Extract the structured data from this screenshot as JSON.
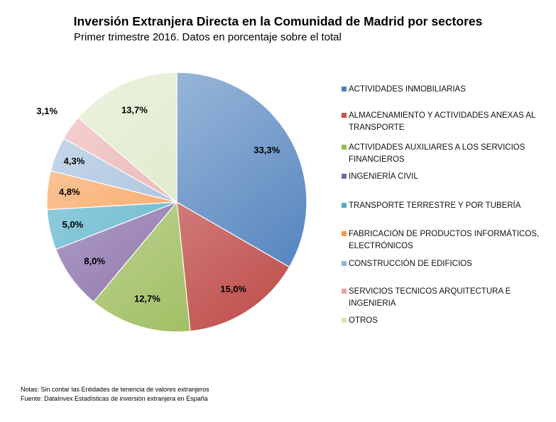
{
  "chart_data": {
    "type": "pie",
    "title": "Inversión Extranjera Directa en la Comunidad de Madrid por sectores",
    "subtitle": "Primer trimestre 2016. Datos en porcentaje sobre el total",
    "categories": [
      "ACTIVIDADES INMOBILIARIAS",
      "ALMACENAMIENTO Y ACTIVIDADES ANEXAS AL TRANSPORTE",
      "ACTIVIDADES AUXILIARES A LOS SERVICIOS FINANCIEROS",
      "INGENIERÍA CIVIL",
      "TRANSPORTE TERRESTRE Y POR TUBERÍA",
      "FABRICACIÓN DE PRODUCTOS INFORMÁTICOS, ELECTRÓNICOS",
      "CONSTRUCCIÓN DE EDIFICIOS",
      "SERVICIOS TECNICOS ARQUITECTURA E INGENIERIA",
      "OTROS"
    ],
    "values": [
      33.3,
      15.0,
      12.7,
      8.0,
      5.0,
      4.8,
      4.3,
      3.1,
      13.7
    ],
    "labels": [
      "33,3%",
      "15,0%",
      "12,7%",
      "8,0%",
      "5,0%",
      "4,8%",
      "4,3%",
      "3,1%",
      "13,7%"
    ],
    "colors": [
      "#4f81bd",
      "#c0504d",
      "#9bbb59",
      "#8064a2",
      "#4bacc6",
      "#f79646",
      "#95b3d7",
      "#e6a3a2",
      "#d7e4bd"
    ],
    "legend_position": "right"
  },
  "legend": {
    "items": [
      "ACTIVIDADES INMOBILIARIAS",
      "ALMACENAMIENTO Y ACTIVIDADES ANEXAS AL TRANSPORTE",
      "ACTIVIDADES AUXILIARES A LOS SERVICIOS FINANCIEROS",
      "INGENIERÍA CIVIL",
      "TRANSPORTE TERRESTRE Y POR TUBERÍA",
      "FABRICACIÓN DE PRODUCTOS INFORMÁTICOS, ELECTRÓNICOS",
      "CONSTRUCCIÓN DE EDIFICIOS",
      "SERVICIOS TECNICOS ARQUITECTURA E INGENIERIA",
      "OTROS"
    ]
  },
  "notes": {
    "line1": "Notas: Sin contar las Entidades de tenencia de valores extranjeros",
    "line2": "Fuente: DataInvex Estadísticas de inversión extranjera en España"
  }
}
